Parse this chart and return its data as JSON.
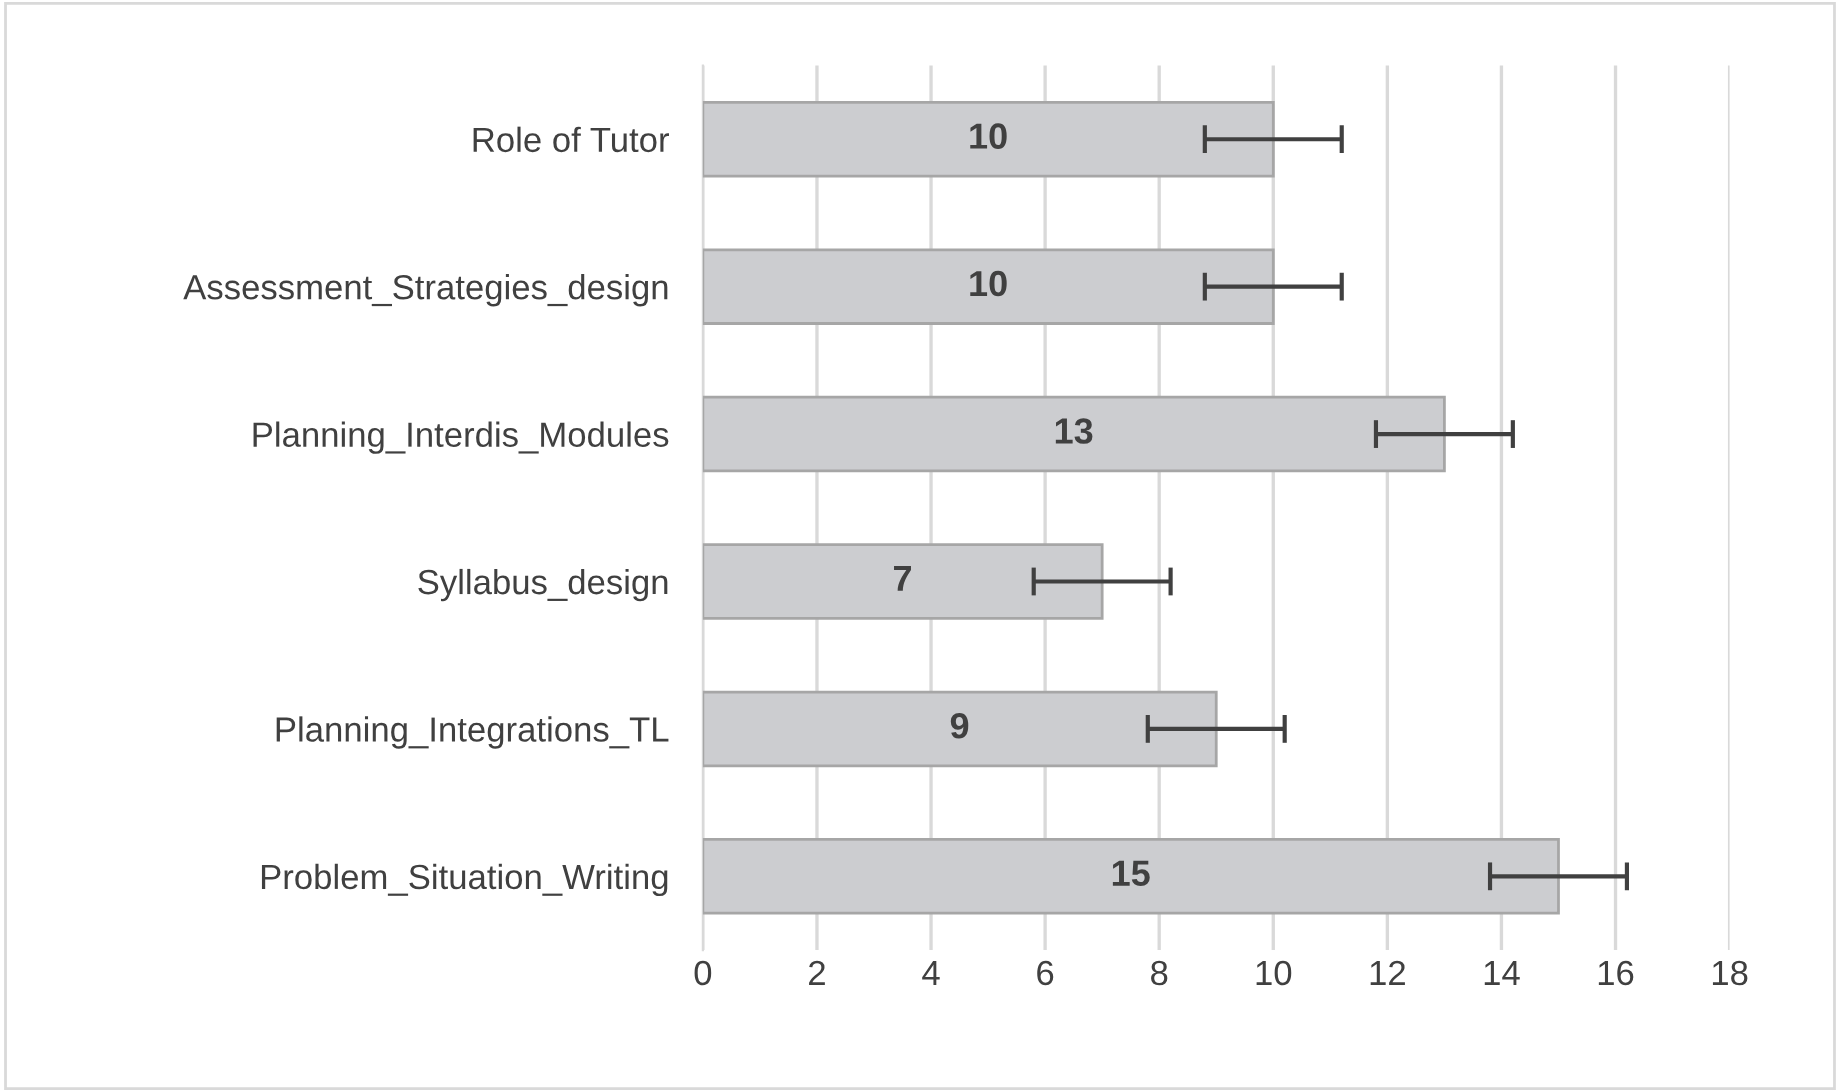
{
  "chart_data": {
    "type": "bar",
    "orientation": "horizontal",
    "categories": [
      "Role of Tutor",
      "Assessment_Strategies_design",
      "Planning_Interdis_Modules",
      "Syllabus_design",
      "Planning_Integrations_TL",
      "Problem_Situation_Writing"
    ],
    "values": [
      10,
      10,
      13,
      7,
      9,
      15
    ],
    "errors": [
      1.2,
      1.2,
      1.2,
      1.2,
      1.2,
      1.2
    ],
    "color": "#cccdd0",
    "xlim": [
      0,
      18
    ],
    "xticks": [
      0,
      2,
      4,
      6,
      8,
      10,
      12,
      14,
      16,
      18
    ],
    "grid": "x",
    "data_labels": true,
    "legend": false
  }
}
